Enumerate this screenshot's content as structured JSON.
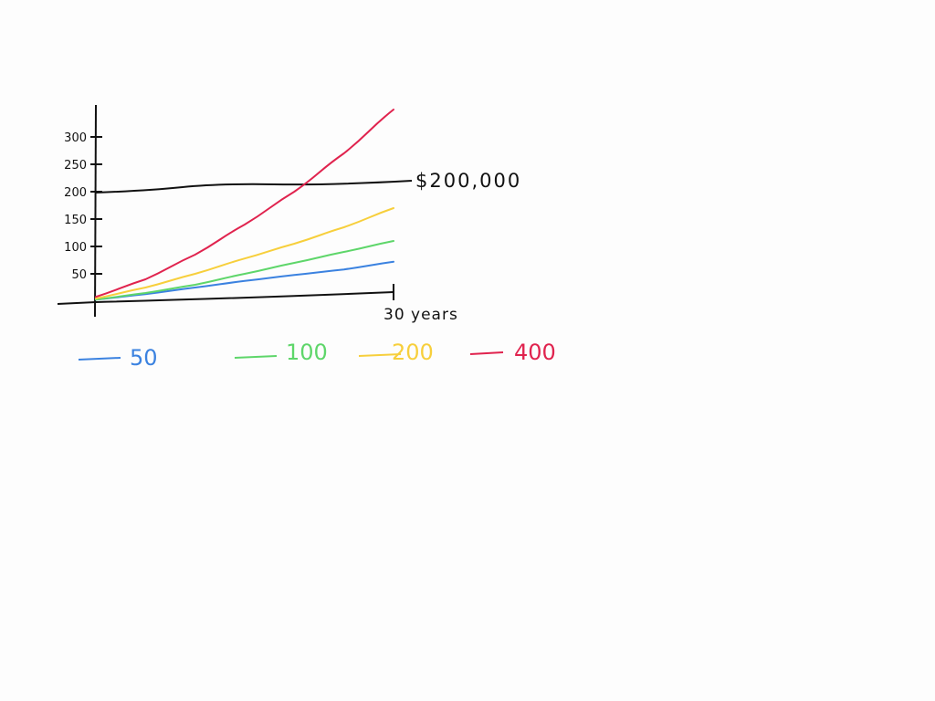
{
  "chart_data": {
    "type": "line",
    "title": "",
    "xlabel": "30 years",
    "ylabel": "",
    "x": [
      0,
      5,
      10,
      15,
      20,
      25,
      30
    ],
    "xlim": [
      0,
      30
    ],
    "ylim": [
      0,
      350
    ],
    "yticks": [
      50,
      100,
      150,
      200,
      250,
      300
    ],
    "ytick_labels": [
      "50",
      "100",
      "150",
      "200",
      "250",
      "300"
    ],
    "grid": false,
    "legend_position": "bottom",
    "series": [
      {
        "name": "50",
        "color": "#3b82e0",
        "values": [
          3,
          13,
          25,
          37,
          48,
          58,
          72
        ]
      },
      {
        "name": "100",
        "color": "#5ed66a",
        "values": [
          3,
          15,
          30,
          50,
          70,
          90,
          110
        ]
      },
      {
        "name": "200",
        "color": "#f7cf3c",
        "values": [
          5,
          25,
          50,
          78,
          105,
          135,
          170
        ]
      },
      {
        "name": "400",
        "color": "#e0234e",
        "values": [
          8,
          40,
          85,
          140,
          200,
          270,
          350
        ]
      }
    ],
    "reference_line": {
      "value": 200,
      "label": "$200,000",
      "color": "#111111"
    }
  }
}
